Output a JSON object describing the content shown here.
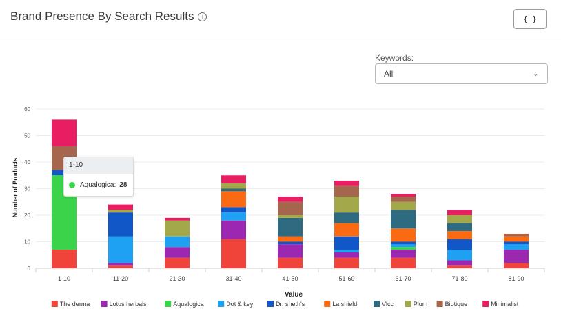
{
  "header": {
    "title": "Brand Presence By Search Results",
    "info_icon": "info-icon",
    "code_button": "{ }"
  },
  "filter": {
    "label": "Keywords:",
    "value": "All"
  },
  "tooltip": {
    "category": "1-10",
    "series": "Aqualogica:",
    "value": "28",
    "color": "#3ad34a"
  },
  "chart_data": {
    "type": "bar",
    "stacked": true,
    "title": "",
    "xlabel": "Value",
    "ylabel": "Number of Products",
    "ylim": [
      0,
      60
    ],
    "yticks": [
      0,
      10,
      20,
      30,
      40,
      50,
      60
    ],
    "categories": [
      "1-10",
      "11-20",
      "21-30",
      "31-40",
      "41-50",
      "51-60",
      "61-70",
      "71-80",
      "81-90"
    ],
    "series": [
      {
        "name": "The derma",
        "color": "#f0433a",
        "values": [
          7,
          1,
          4,
          11,
          4,
          4,
          4,
          1,
          2
        ]
      },
      {
        "name": "Lotus herbals",
        "color": "#9c27b0",
        "values": [
          0,
          1,
          4,
          7,
          5,
          2,
          3,
          2,
          5
        ]
      },
      {
        "name": "Aqualogica",
        "color": "#3ad34a",
        "values": [
          28,
          0,
          0,
          0,
          0,
          0,
          1,
          0,
          0
        ]
      },
      {
        "name": "Dot & key",
        "color": "#1ea1f2",
        "values": [
          0,
          10,
          4,
          3,
          0,
          1,
          1,
          4,
          2
        ]
      },
      {
        "name": "Dr. sheth's",
        "color": "#1257c8",
        "values": [
          2,
          9,
          0,
          2,
          1,
          5,
          1,
          4,
          1
        ]
      },
      {
        "name": "La shield",
        "color": "#fa6a12",
        "values": [
          0,
          0,
          0,
          6,
          2,
          5,
          5,
          3,
          2
        ]
      },
      {
        "name": "Vlcc",
        "color": "#2e6a80",
        "values": [
          0,
          0,
          0,
          1,
          7,
          4,
          7,
          3,
          0
        ]
      },
      {
        "name": "Plum",
        "color": "#a3a84a",
        "values": [
          0,
          1,
          6,
          2,
          1,
          6,
          3,
          3,
          0
        ]
      },
      {
        "name": "Biotique",
        "color": "#a6654d",
        "values": [
          9,
          0,
          0,
          0,
          5,
          4,
          2,
          0,
          1
        ]
      },
      {
        "name": "Minimalist",
        "color": "#e81d62",
        "values": [
          10,
          2,
          1,
          3,
          2,
          2,
          1,
          2,
          0
        ]
      }
    ],
    "legend_position": "bottom-center"
  }
}
